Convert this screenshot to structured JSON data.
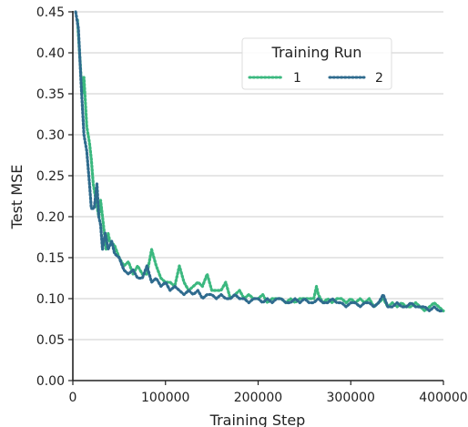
{
  "chart_data": {
    "type": "line",
    "xlabel": "Training Step",
    "ylabel": "Test MSE",
    "xlim": [
      0,
      400000
    ],
    "ylim": [
      0,
      0.45
    ],
    "x_ticks": [
      0,
      100000,
      200000,
      300000,
      400000
    ],
    "x_tick_labels": [
      "0",
      "100000",
      "200000",
      "300000",
      "400000"
    ],
    "y_ticks": [
      0,
      0.05,
      0.1,
      0.15,
      0.2,
      0.25,
      0.3,
      0.35,
      0.4,
      0.45
    ],
    "y_tick_labels": [
      "0.00",
      "0.05",
      "0.10",
      "0.15",
      "0.20",
      "0.25",
      "0.30",
      "0.35",
      "0.40",
      "0.45"
    ],
    "grid": "horizontal",
    "legend": {
      "title": "Training Run",
      "placement": "upper-center",
      "columns": 2
    },
    "series": [
      {
        "name": "1",
        "color": "#3bb87f",
        "style": "dotted",
        "points": [
          [
            5000,
            0.44
          ],
          [
            10000,
            0.35
          ],
          [
            12000,
            0.37
          ],
          [
            15000,
            0.31
          ],
          [
            18000,
            0.29
          ],
          [
            20000,
            0.27
          ],
          [
            22000,
            0.24
          ],
          [
            25000,
            0.22
          ],
          [
            28000,
            0.2
          ],
          [
            30000,
            0.22
          ],
          [
            33000,
            0.19
          ],
          [
            36000,
            0.16
          ],
          [
            38000,
            0.18
          ],
          [
            40000,
            0.17
          ],
          [
            45000,
            0.165
          ],
          [
            50000,
            0.15
          ],
          [
            55000,
            0.14
          ],
          [
            60000,
            0.145
          ],
          [
            65000,
            0.13
          ],
          [
            70000,
            0.14
          ],
          [
            75000,
            0.13
          ],
          [
            80000,
            0.13
          ],
          [
            85000,
            0.16
          ],
          [
            90000,
            0.14
          ],
          [
            95000,
            0.125
          ],
          [
            100000,
            0.12
          ],
          [
            105000,
            0.12
          ],
          [
            110000,
            0.115
          ],
          [
            115000,
            0.14
          ],
          [
            120000,
            0.12
          ],
          [
            125000,
            0.11
          ],
          [
            130000,
            0.115
          ],
          [
            135000,
            0.12
          ],
          [
            140000,
            0.115
          ],
          [
            145000,
            0.13
          ],
          [
            150000,
            0.11
          ],
          [
            155000,
            0.11
          ],
          [
            160000,
            0.11
          ],
          [
            165000,
            0.12
          ],
          [
            170000,
            0.1
          ],
          [
            175000,
            0.105
          ],
          [
            180000,
            0.11
          ],
          [
            185000,
            0.1
          ],
          [
            190000,
            0.105
          ],
          [
            195000,
            0.1
          ],
          [
            200000,
            0.1
          ],
          [
            205000,
            0.105
          ],
          [
            210000,
            0.095
          ],
          [
            215000,
            0.1
          ],
          [
            220000,
            0.1
          ],
          [
            225000,
            0.1
          ],
          [
            230000,
            0.095
          ],
          [
            235000,
            0.1
          ],
          [
            240000,
            0.095
          ],
          [
            245000,
            0.1
          ],
          [
            250000,
            0.1
          ],
          [
            255000,
            0.1
          ],
          [
            260000,
            0.1
          ],
          [
            263000,
            0.115
          ],
          [
            265000,
            0.105
          ],
          [
            270000,
            0.095
          ],
          [
            275000,
            0.1
          ],
          [
            280000,
            0.095
          ],
          [
            285000,
            0.1
          ],
          [
            290000,
            0.1
          ],
          [
            295000,
            0.095
          ],
          [
            300000,
            0.1
          ],
          [
            305000,
            0.095
          ],
          [
            310000,
            0.1
          ],
          [
            315000,
            0.095
          ],
          [
            320000,
            0.1
          ],
          [
            325000,
            0.09
          ],
          [
            330000,
            0.095
          ],
          [
            335000,
            0.1
          ],
          [
            340000,
            0.09
          ],
          [
            345000,
            0.095
          ],
          [
            350000,
            0.09
          ],
          [
            355000,
            0.095
          ],
          [
            360000,
            0.09
          ],
          [
            365000,
            0.09
          ],
          [
            370000,
            0.095
          ],
          [
            375000,
            0.09
          ],
          [
            380000,
            0.085
          ],
          [
            385000,
            0.09
          ],
          [
            390000,
            0.095
          ],
          [
            395000,
            0.09
          ],
          [
            400000,
            0.085
          ]
        ]
      },
      {
        "name": "2",
        "color": "#2f6b8e",
        "style": "dotted",
        "points": [
          [
            3000,
            0.45
          ],
          [
            6000,
            0.43
          ],
          [
            9000,
            0.36
          ],
          [
            12000,
            0.3
          ],
          [
            15000,
            0.28
          ],
          [
            18000,
            0.24
          ],
          [
            20000,
            0.21
          ],
          [
            23000,
            0.21
          ],
          [
            26000,
            0.24
          ],
          [
            28000,
            0.2
          ],
          [
            30000,
            0.19
          ],
          [
            32000,
            0.16
          ],
          [
            35000,
            0.18
          ],
          [
            38000,
            0.16
          ],
          [
            42000,
            0.17
          ],
          [
            45000,
            0.155
          ],
          [
            50000,
            0.15
          ],
          [
            55000,
            0.135
          ],
          [
            60000,
            0.13
          ],
          [
            65000,
            0.135
          ],
          [
            70000,
            0.125
          ],
          [
            75000,
            0.125
          ],
          [
            80000,
            0.14
          ],
          [
            85000,
            0.12
          ],
          [
            90000,
            0.125
          ],
          [
            95000,
            0.115
          ],
          [
            100000,
            0.12
          ],
          [
            105000,
            0.11
          ],
          [
            110000,
            0.115
          ],
          [
            115000,
            0.11
          ],
          [
            120000,
            0.105
          ],
          [
            125000,
            0.11
          ],
          [
            130000,
            0.105
          ],
          [
            135000,
            0.11
          ],
          [
            140000,
            0.1
          ],
          [
            145000,
            0.105
          ],
          [
            150000,
            0.105
          ],
          [
            155000,
            0.1
          ],
          [
            160000,
            0.105
          ],
          [
            165000,
            0.1
          ],
          [
            170000,
            0.1
          ],
          [
            175000,
            0.105
          ],
          [
            180000,
            0.1
          ],
          [
            185000,
            0.1
          ],
          [
            190000,
            0.095
          ],
          [
            195000,
            0.1
          ],
          [
            200000,
            0.1
          ],
          [
            205000,
            0.095
          ],
          [
            210000,
            0.1
          ],
          [
            215000,
            0.095
          ],
          [
            220000,
            0.1
          ],
          [
            225000,
            0.1
          ],
          [
            230000,
            0.095
          ],
          [
            235000,
            0.095
          ],
          [
            240000,
            0.1
          ],
          [
            245000,
            0.095
          ],
          [
            250000,
            0.1
          ],
          [
            255000,
            0.095
          ],
          [
            260000,
            0.095
          ],
          [
            265000,
            0.1
          ],
          [
            270000,
            0.095
          ],
          [
            275000,
            0.095
          ],
          [
            280000,
            0.1
          ],
          [
            285000,
            0.095
          ],
          [
            290000,
            0.095
          ],
          [
            295000,
            0.09
          ],
          [
            300000,
            0.095
          ],
          [
            305000,
            0.095
          ],
          [
            310000,
            0.09
          ],
          [
            315000,
            0.095
          ],
          [
            320000,
            0.095
          ],
          [
            325000,
            0.09
          ],
          [
            330000,
            0.095
          ],
          [
            335000,
            0.105
          ],
          [
            340000,
            0.09
          ],
          [
            345000,
            0.09
          ],
          [
            350000,
            0.095
          ],
          [
            355000,
            0.09
          ],
          [
            360000,
            0.09
          ],
          [
            365000,
            0.095
          ],
          [
            370000,
            0.09
          ],
          [
            375000,
            0.09
          ],
          [
            380000,
            0.09
          ],
          [
            385000,
            0.085
          ],
          [
            390000,
            0.09
          ],
          [
            395000,
            0.085
          ],
          [
            400000,
            0.085
          ]
        ]
      }
    ]
  }
}
